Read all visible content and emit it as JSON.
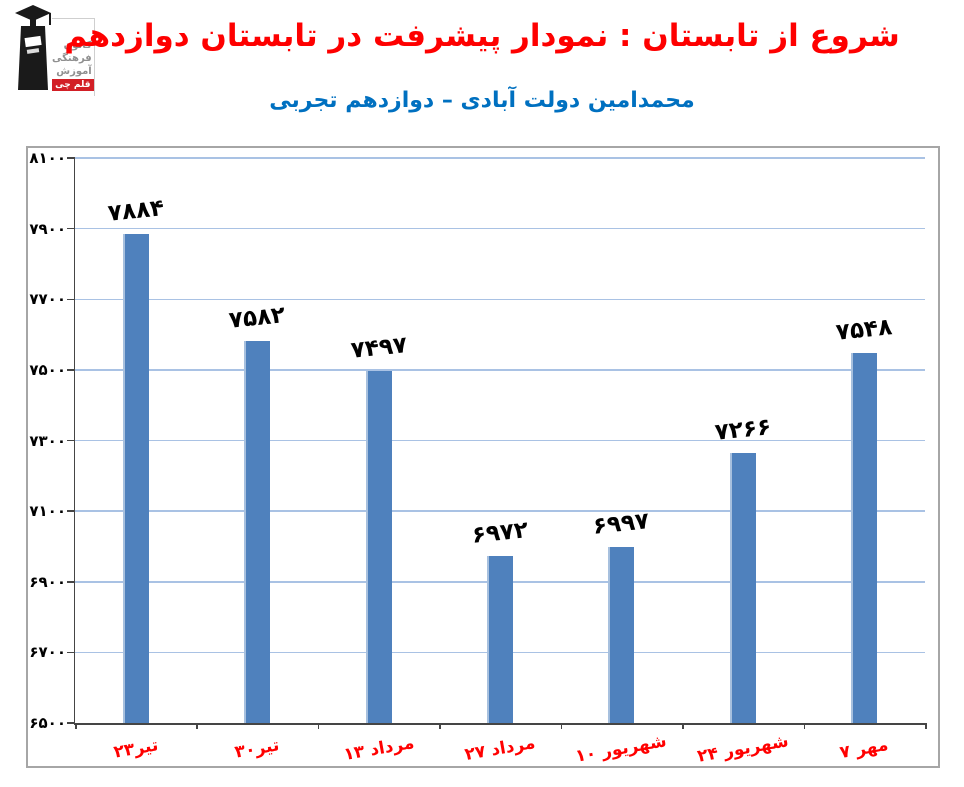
{
  "header": {
    "title": "شروع از تابستان : نمودار پیشرفت در تابستان دوازدهم",
    "subtitle": "محمدامین دولت آبادی – دوازدهم تجربی",
    "logo": {
      "org_lines": [
        "کانون",
        "فرهنگی",
        "آموزش"
      ],
      "brand": "قلم چی"
    }
  },
  "colors": {
    "title_red": "#fe0000",
    "subtitle_blue": "#0070c0",
    "bar": "#4f81bd",
    "bar_highlight": "#a7c0de",
    "grid": "#a9c2e4",
    "axis": "#454545",
    "x_label": "#ff0000",
    "value_label": "#000000",
    "frame_border": "#a6a6a6",
    "logo_brand_bg": "#d21f26",
    "logo_text_gray": "#8f8f8f"
  },
  "chart_data": {
    "type": "bar",
    "categories": [
      "۲۳تیر",
      "۳۰تیر",
      "۱۳ مرداد",
      "۲۷ مرداد",
      "۱۰ شهریور",
      "۲۴ شهریور",
      "۷ مهر"
    ],
    "values": [
      7884,
      7582,
      7497,
      6972,
      6997,
      7266,
      7548
    ],
    "value_labels": [
      "۷۸۸۴",
      "۷۵۸۲",
      "۷۴۹۷",
      "۶۹۷۲",
      "۶۹۹۷",
      "۷۲۶۶",
      "۷۵۴۸"
    ],
    "title": "نمودار پیشرفت در تابستان دوازدهم",
    "xlabel": "",
    "ylabel": "",
    "ylim": [
      6500,
      8100
    ],
    "ystep": 200,
    "y_tick_labels": [
      "۶۵۰۰",
      "۶۷۰۰",
      "۶۹۰۰",
      "۷۱۰۰",
      "۷۳۰۰",
      "۷۵۰۰",
      "۷۷۰۰",
      "۷۹۰۰",
      "۸۱۰۰"
    ],
    "grid": true,
    "legend": false
  }
}
